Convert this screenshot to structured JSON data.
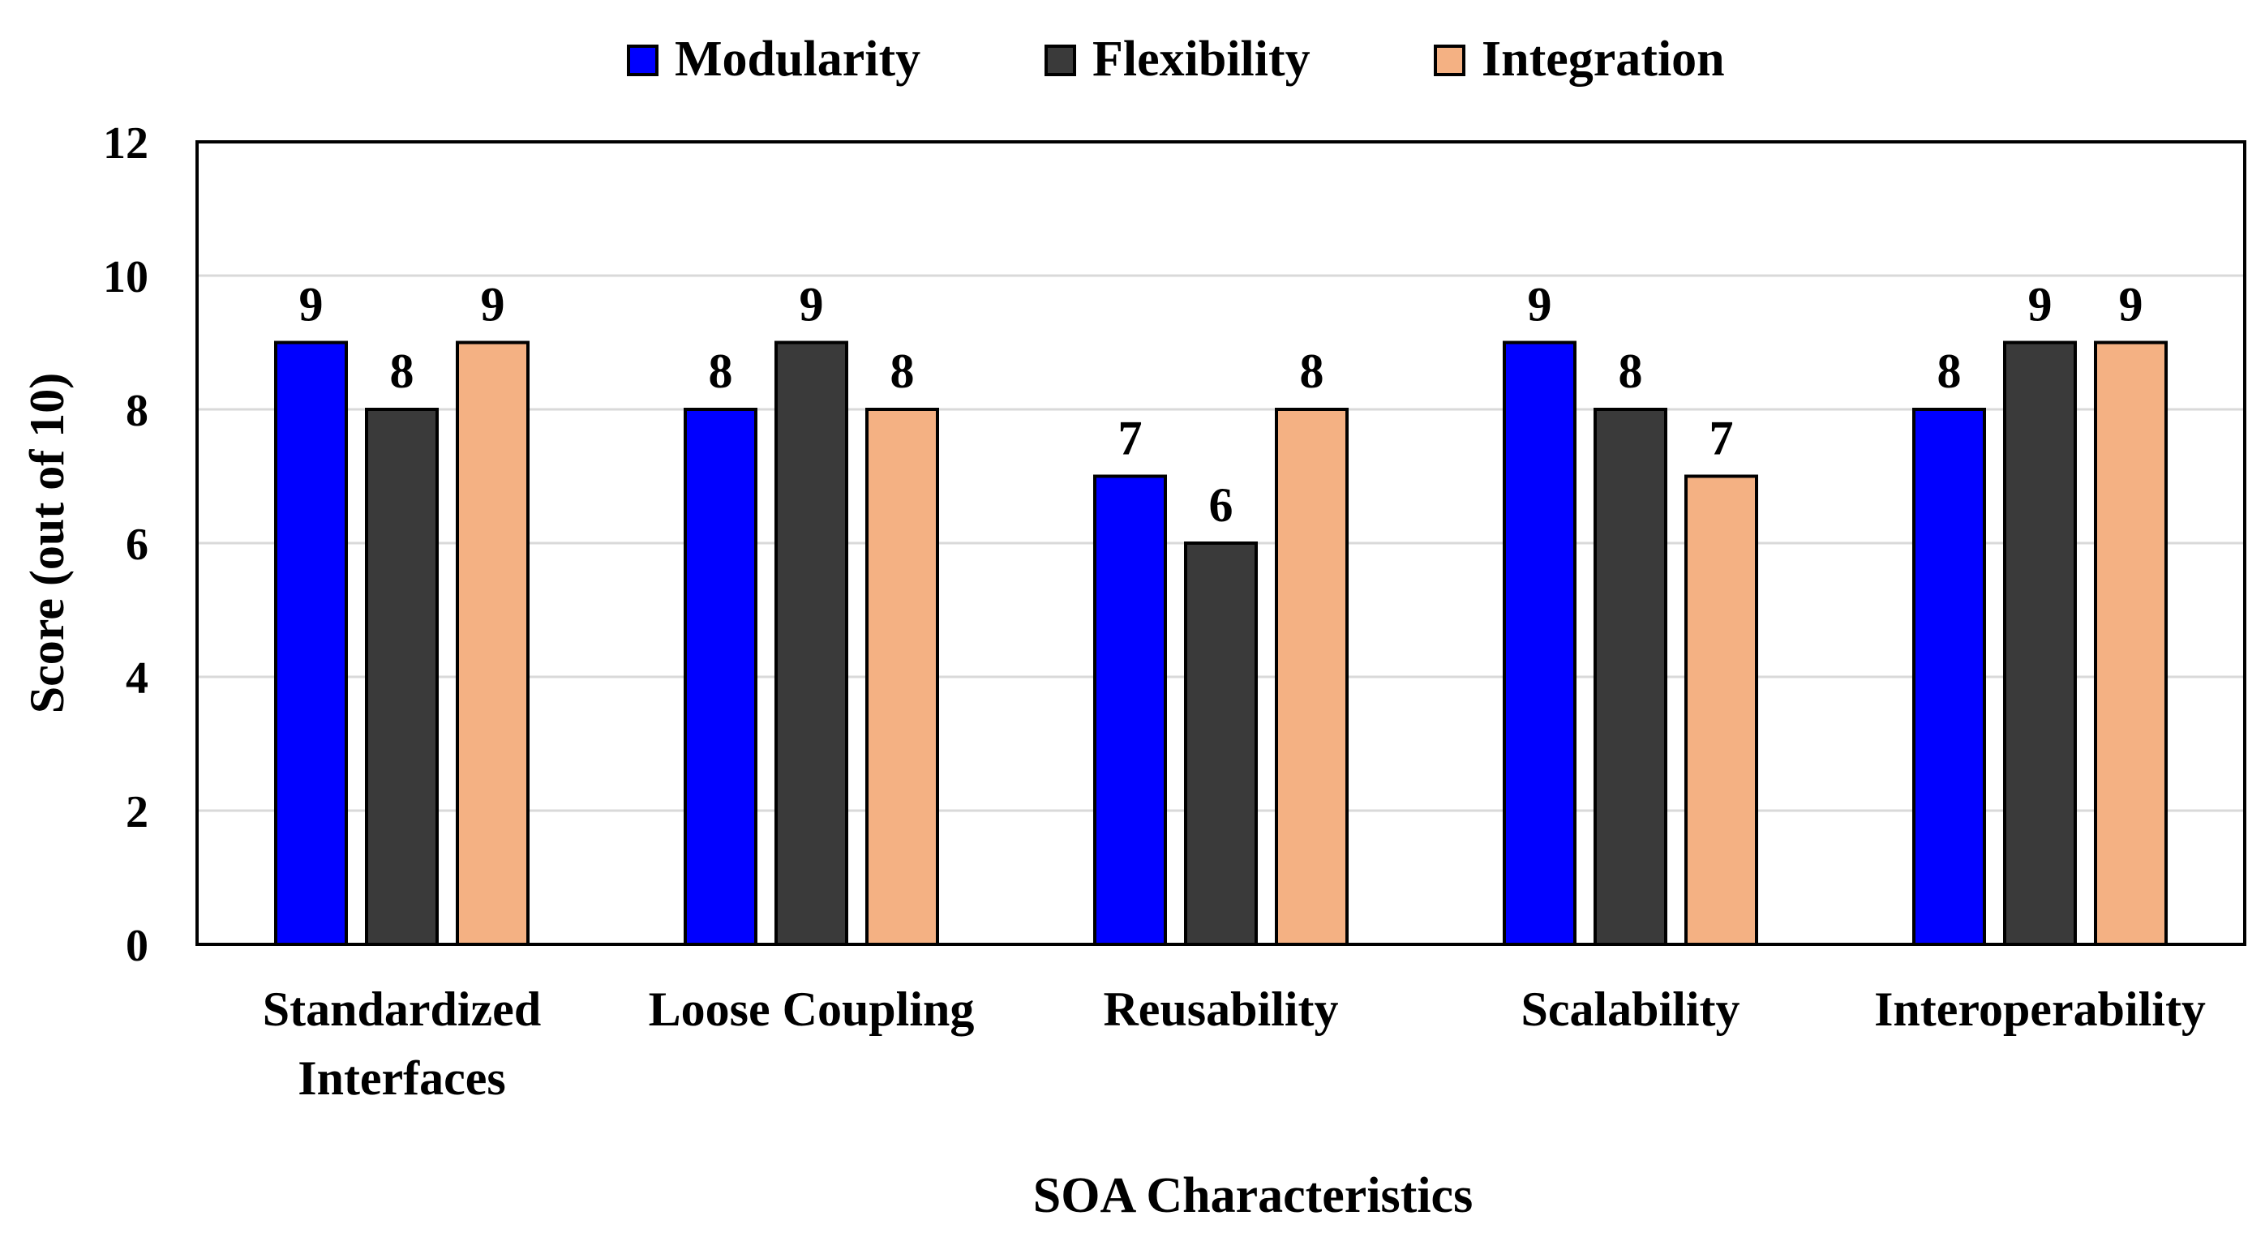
{
  "chart_data": {
    "type": "bar",
    "title": "",
    "xlabel": "SOA Characteristics",
    "ylabel": "Score (out of 10)",
    "ylim": [
      0,
      12
    ],
    "yticks": [
      "0",
      "2",
      "4",
      "6",
      "8",
      "10",
      "12"
    ],
    "grid": true,
    "legend_position": "top-center",
    "categories": [
      [
        "Standardized",
        "Interfaces"
      ],
      [
        "Loose Coupling"
      ],
      [
        "Reusability"
      ],
      [
        "Scalability"
      ],
      [
        "Interoperability"
      ]
    ],
    "series": [
      {
        "name": "Modularity",
        "color": "#0000FF",
        "values": [
          9,
          8,
          7,
          9,
          8
        ]
      },
      {
        "name": "Flexibility",
        "color": "#3A3A3A",
        "values": [
          8,
          9,
          6,
          8,
          9
        ]
      },
      {
        "name": "Integration",
        "color": "#F4B183",
        "values": [
          9,
          8,
          8,
          7,
          9
        ]
      }
    ]
  }
}
